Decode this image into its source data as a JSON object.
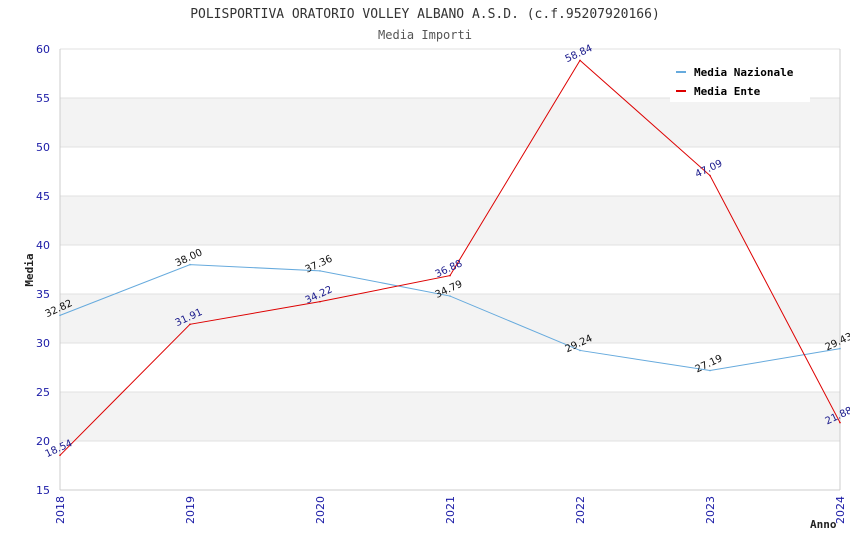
{
  "chart_data": {
    "type": "line",
    "title": "POLISPORTIVA ORATORIO VOLLEY ALBANO A.S.D. (c.f.95207920166)",
    "subtitle": "Media Importi",
    "xlabel": "Anno",
    "ylabel": "Media",
    "ylim": [
      15,
      60
    ],
    "yticks": [
      "15",
      "20",
      "25",
      "30",
      "35",
      "40",
      "45",
      "50",
      "55",
      "60"
    ],
    "categories": [
      "2018",
      "2019",
      "2020",
      "2021",
      "2022",
      "2023",
      "2024"
    ],
    "grid": "horizontal bands",
    "legend_position": "top-right",
    "series": [
      {
        "name": "Media Nazionale",
        "color": "#66aadd",
        "values": [
          32.82,
          38.0,
          37.36,
          34.79,
          29.24,
          27.19,
          29.43
        ],
        "labels": [
          "32.82",
          "38.00",
          "37.36",
          "34.79",
          "29.24",
          "27.19",
          "29.43"
        ]
      },
      {
        "name": "Media Ente",
        "color": "#dd0000",
        "values": [
          18.54,
          31.91,
          34.22,
          36.88,
          58.84,
          47.09,
          21.88
        ],
        "labels": [
          "18.54",
          "31.91",
          "34.22",
          "36.88",
          "58.84",
          "47.09",
          "21.88"
        ]
      }
    ]
  }
}
